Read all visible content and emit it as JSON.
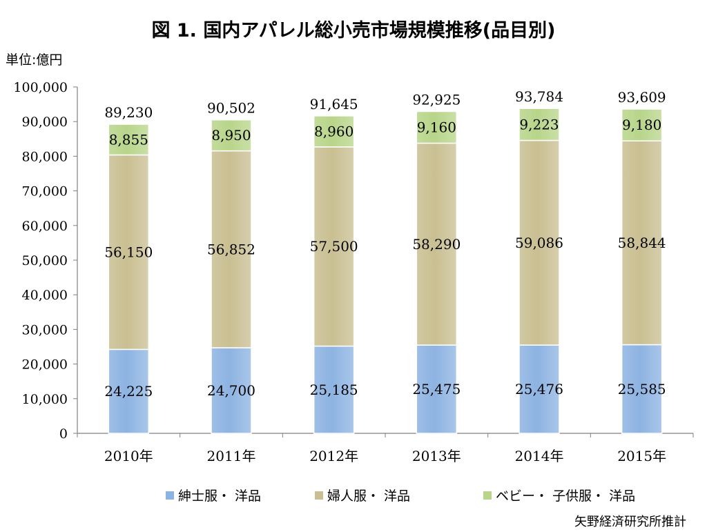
{
  "title": "図 1. 国内アパレル総小売市場規模推移(品目別)",
  "unit": "単位:億円",
  "source": "矢野経済研究所推計",
  "chart_data": {
    "type": "bar",
    "stacked": true,
    "categories": [
      "2010年",
      "2011年",
      "2012年",
      "2013年",
      "2014年",
      "2015年"
    ],
    "series": [
      {
        "name": "紳士服・ 洋品",
        "values": [
          24225,
          24700,
          25185,
          25475,
          25476,
          25585
        ],
        "labels": [
          "24,225",
          "24,700",
          "25,185",
          "25,475",
          "25,476",
          "25,585"
        ],
        "color": "#8db3e2"
      },
      {
        "name": "婦人服・ 洋品",
        "values": [
          56150,
          56852,
          57500,
          58290,
          59086,
          58844
        ],
        "labels": [
          "56,150",
          "56,852",
          "57,500",
          "58,290",
          "59,086",
          "58,844"
        ],
        "color": "#c9bf92"
      },
      {
        "name": "ベビー・ 子供服・ 洋品",
        "values": [
          8855,
          8950,
          8960,
          9160,
          9223,
          9180
        ],
        "labels": [
          "8,855",
          "8,950",
          "8,960",
          "9,160",
          "9,223",
          "9,180"
        ],
        "color": "#b8d58a"
      }
    ],
    "totals": [
      89230,
      90502,
      91645,
      92925,
      93784,
      93609
    ],
    "total_labels": [
      "89,230",
      "90,502",
      "91,645",
      "92,925",
      "93,784",
      "93,609"
    ],
    "ylim": [
      0,
      100000
    ],
    "yticks": [
      0,
      10000,
      20000,
      30000,
      40000,
      50000,
      60000,
      70000,
      80000,
      90000,
      100000
    ],
    "ytick_labels": [
      "0",
      "10,000",
      "20,000",
      "30,000",
      "40,000",
      "50,000",
      "60,000",
      "70,000",
      "80,000",
      "90,000",
      "100,000"
    ],
    "grid": false,
    "legend_position": "bottom"
  }
}
